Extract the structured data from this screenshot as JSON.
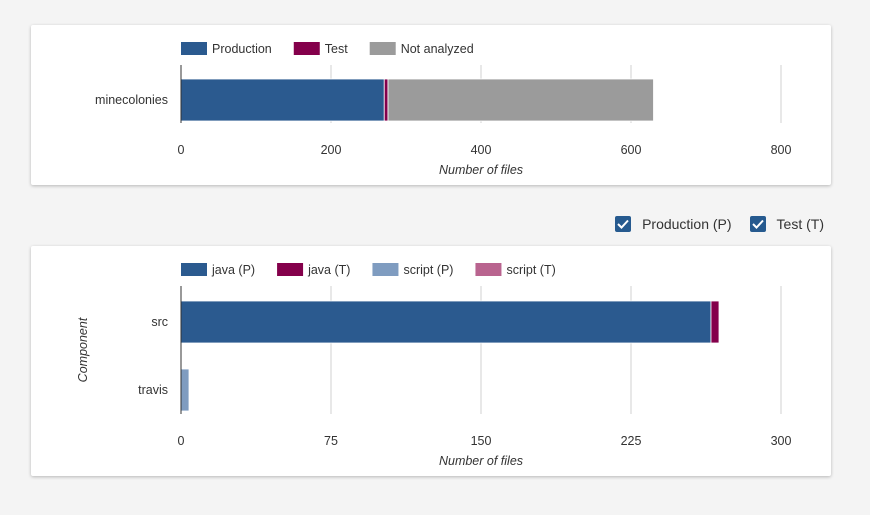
{
  "colors": {
    "production": "#2b5a8f",
    "test": "#84004b",
    "not_analyzed": "#9b9b9b",
    "java_p": "#2b5a8f",
    "java_t": "#84004b",
    "script_p": "#7f9cc0",
    "script_t": "#b9648f",
    "grid": "#d0d0d0",
    "axis": "#333333"
  },
  "toggles": {
    "production_label": "Production (P)",
    "test_label": "Test (T)",
    "production_checked": true,
    "test_checked": true
  },
  "chart_data": [
    {
      "type": "bar",
      "orientation": "horizontal",
      "stacked": true,
      "categories": [
        "minecolonies"
      ],
      "series": [
        {
          "name": "Production",
          "values": [
            271
          ],
          "color_key": "production"
        },
        {
          "name": "Test",
          "values": [
            5
          ],
          "color_key": "test"
        },
        {
          "name": "Not analyzed",
          "values": [
            354
          ],
          "color_key": "not_analyzed"
        }
      ],
      "xlabel": "Number of files",
      "ylabel": "",
      "xlim": [
        0,
        800
      ],
      "xticks": [
        0,
        200,
        400,
        600,
        800
      ],
      "grid": true,
      "legend": "top"
    },
    {
      "type": "bar",
      "orientation": "horizontal",
      "stacked": true,
      "categories": [
        "src",
        "travis"
      ],
      "series": [
        {
          "name": "java (P)",
          "values": [
            265,
            0
          ],
          "color_key": "java_p"
        },
        {
          "name": "java (T)",
          "values": [
            4,
            0
          ],
          "color_key": "java_t"
        },
        {
          "name": "script (P)",
          "values": [
            0,
            4
          ],
          "color_key": "script_p"
        },
        {
          "name": "script (T)",
          "values": [
            0,
            0
          ],
          "color_key": "script_t"
        }
      ],
      "xlabel": "Number of files",
      "ylabel": "Component",
      "xlim": [
        0,
        300
      ],
      "xticks": [
        0,
        75,
        150,
        225,
        300
      ],
      "grid": true,
      "legend": "top"
    }
  ]
}
